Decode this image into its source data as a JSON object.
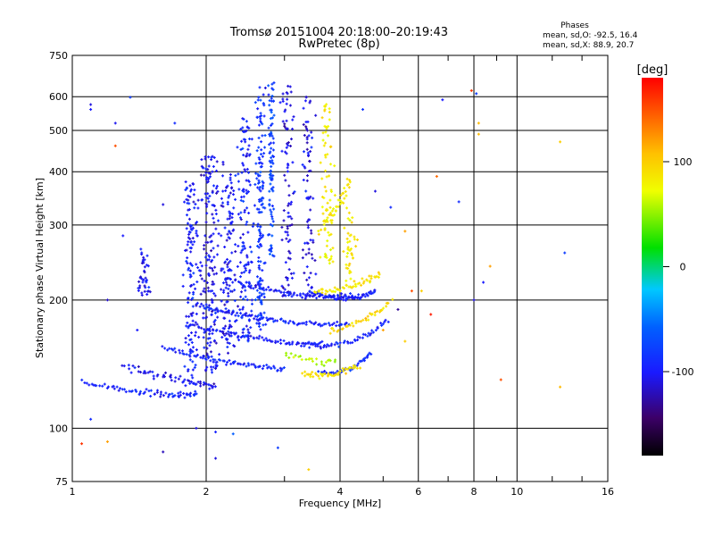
{
  "header": {
    "title": "Tromsø 20151004 20:18:00–20:19:43",
    "subtitle": "RwPretec (8p)"
  },
  "stats": {
    "heading": "Phases",
    "line_o": "mean, sd,O: -92.5, 16.4",
    "line_x": "mean, sd,X:  88.9, 20.7"
  },
  "colorbar": {
    "unit_label": "[deg]",
    "range": [
      -180,
      180
    ],
    "ticks": [
      {
        "value": 100,
        "label": "100"
      },
      {
        "value": 0,
        "label": "0"
      },
      {
        "value": -100,
        "label": "-100"
      }
    ]
  },
  "chart_data": {
    "type": "scatter",
    "xlabel": "Frequency [MHz]",
    "ylabel": "Stationary phase Virtual Height [km]",
    "x_scale": "log",
    "y_scale": "log",
    "xlim": [
      1,
      16
    ],
    "ylim": [
      75,
      750
    ],
    "grid": true,
    "x_ticks": [
      {
        "value": 1,
        "label": "1"
      },
      {
        "value": 2,
        "label": "2"
      },
      {
        "value": 4,
        "label": "4"
      },
      {
        "value": 6,
        "label": "6"
      },
      {
        "value": 8,
        "label": "8"
      },
      {
        "value": 10,
        "label": "10"
      },
      {
        "value": 16,
        "label": "16"
      }
    ],
    "y_ticks": [
      {
        "value": 75,
        "label": "75"
      },
      {
        "value": 100,
        "label": "100"
      },
      {
        "value": 200,
        "label": "200"
      },
      {
        "value": 300,
        "label": "300"
      },
      {
        "value": 400,
        "label": "400"
      },
      {
        "value": 500,
        "label": "500"
      },
      {
        "value": 600,
        "label": "600"
      },
      {
        "value": 750,
        "label": "750"
      }
    ],
    "color_variable": "phase [deg]",
    "traces": [
      {
        "x0": 1.05,
        "y0": 128,
        "x1": 1.6,
        "y1": 118,
        "x2": 1.9,
        "y2": 120,
        "phase": -95,
        "n": 70,
        "spread": 0.025
      },
      {
        "x0": 1.3,
        "y0": 140,
        "x1": 1.8,
        "y1": 128,
        "x2": 2.1,
        "y2": 125,
        "phase": -105,
        "n": 60,
        "spread": 0.03
      },
      {
        "x0": 1.6,
        "y0": 155,
        "x1": 2.3,
        "y1": 140,
        "x2": 3.0,
        "y2": 138,
        "phase": -95,
        "n": 70,
        "spread": 0.02
      },
      {
        "x0": 1.8,
        "y0": 175,
        "x1": 2.6,
        "y1": 160,
        "x2": 3.7,
        "y2": 155,
        "phase": -100,
        "n": 80,
        "spread": 0.02
      },
      {
        "x0": 1.9,
        "y0": 195,
        "x1": 2.8,
        "y1": 175,
        "x2": 4.2,
        "y2": 175,
        "phase": -95,
        "n": 90,
        "spread": 0.02
      },
      {
        "x0": 2.2,
        "y0": 225,
        "x1": 3.1,
        "y1": 200,
        "x2": 4.4,
        "y2": 205,
        "phase": -100,
        "n": 80,
        "spread": 0.02
      },
      {
        "x0": 3.4,
        "y0": 210,
        "x1": 4.2,
        "y1": 195,
        "x2": 4.8,
        "y2": 210,
        "phase": -98,
        "n": 60,
        "spread": 0.02
      },
      {
        "x0": 3.6,
        "y0": 135,
        "x1": 4.2,
        "y1": 132,
        "x2": 4.7,
        "y2": 150,
        "phase": -90,
        "n": 40,
        "spread": 0.02
      },
      {
        "x0": 3.3,
        "y0": 160,
        "x1": 4.3,
        "y1": 150,
        "x2": 5.1,
        "y2": 180,
        "phase": -95,
        "n": 50,
        "spread": 0.02
      },
      {
        "x0": 3.5,
        "y0": 210,
        "x1": 4.3,
        "y1": 210,
        "x2": 4.9,
        "y2": 230,
        "phase": 85,
        "n": 50,
        "spread": 0.025
      },
      {
        "x0": 3.3,
        "y0": 135,
        "x1": 3.8,
        "y1": 130,
        "x2": 4.4,
        "y2": 140,
        "phase": 90,
        "n": 45,
        "spread": 0.025
      },
      {
        "x0": 3.8,
        "y0": 170,
        "x1": 4.6,
        "y1": 175,
        "x2": 5.2,
        "y2": 200,
        "phase": 95,
        "n": 40,
        "spread": 0.025
      },
      {
        "x0": 3.6,
        "y0": 290,
        "x1": 4.0,
        "y1": 330,
        "x2": 4.2,
        "y2": 380,
        "phase": 88,
        "n": 40,
        "spread": 0.04
      },
      {
        "x0": 3.0,
        "y0": 150,
        "x1": 3.5,
        "y1": 140,
        "x2": 3.9,
        "y2": 145,
        "phase": 60,
        "n": 25,
        "spread": 0.03
      }
    ],
    "columns": [
      {
        "x": 1.85,
        "ymin": 130,
        "ymax": 380,
        "phase": -100,
        "n": 130,
        "spread": 0.06
      },
      {
        "x": 2.05,
        "ymin": 135,
        "ymax": 440,
        "phase": -105,
        "n": 180,
        "spread": 0.08
      },
      {
        "x": 2.25,
        "ymin": 150,
        "ymax": 400,
        "phase": -100,
        "n": 120,
        "spread": 0.06
      },
      {
        "x": 2.45,
        "ymin": 160,
        "ymax": 540,
        "phase": -95,
        "n": 140,
        "spread": 0.06
      },
      {
        "x": 2.65,
        "ymin": 170,
        "ymax": 640,
        "phase": -85,
        "n": 150,
        "spread": 0.04
      },
      {
        "x": 2.8,
        "ymin": 250,
        "ymax": 650,
        "phase": -75,
        "n": 90,
        "spread": 0.02
      },
      {
        "x": 3.05,
        "ymin": 200,
        "ymax": 640,
        "phase": -110,
        "n": 90,
        "spread": 0.05
      },
      {
        "x": 3.4,
        "ymin": 200,
        "ymax": 600,
        "phase": -110,
        "n": 80,
        "spread": 0.05
      },
      {
        "x": 1.45,
        "ymin": 205,
        "ymax": 265,
        "phase": -100,
        "n": 40,
        "spread": 0.05
      },
      {
        "x": 3.75,
        "ymin": 240,
        "ymax": 600,
        "phase": 80,
        "n": 70,
        "spread": 0.05
      },
      {
        "x": 4.2,
        "ymin": 220,
        "ymax": 330,
        "phase": 85,
        "n": 40,
        "spread": 0.05
      }
    ],
    "scatter": [
      {
        "x": 1.1,
        "y": 575,
        "phase": -110
      },
      {
        "x": 1.1,
        "y": 560,
        "phase": -100
      },
      {
        "x": 1.25,
        "y": 520,
        "phase": -105
      },
      {
        "x": 1.25,
        "y": 460,
        "phase": 150
      },
      {
        "x": 1.35,
        "y": 598,
        "phase": -80
      },
      {
        "x": 1.6,
        "y": 335,
        "phase": -110
      },
      {
        "x": 1.7,
        "y": 520,
        "phase": -90
      },
      {
        "x": 1.3,
        "y": 283,
        "phase": -100
      },
      {
        "x": 1.2,
        "y": 200,
        "phase": -115
      },
      {
        "x": 1.4,
        "y": 170,
        "phase": -100
      },
      {
        "x": 1.05,
        "y": 92,
        "phase": 160
      },
      {
        "x": 1.1,
        "y": 105,
        "phase": -90
      },
      {
        "x": 1.2,
        "y": 93,
        "phase": 120
      },
      {
        "x": 1.6,
        "y": 88,
        "phase": -120
      },
      {
        "x": 1.9,
        "y": 100,
        "phase": -110
      },
      {
        "x": 2.1,
        "y": 98,
        "phase": -95
      },
      {
        "x": 2.3,
        "y": 97,
        "phase": -60
      },
      {
        "x": 2.1,
        "y": 85,
        "phase": -110
      },
      {
        "x": 2.9,
        "y": 90,
        "phase": -80
      },
      {
        "x": 3.4,
        "y": 80,
        "phase": 100
      },
      {
        "x": 4.5,
        "y": 560,
        "phase": -85
      },
      {
        "x": 4.8,
        "y": 360,
        "phase": -110
      },
      {
        "x": 5.2,
        "y": 330,
        "phase": -90
      },
      {
        "x": 5.6,
        "y": 290,
        "phase": 120
      },
      {
        "x": 5.8,
        "y": 210,
        "phase": 150
      },
      {
        "x": 6.1,
        "y": 210,
        "phase": 100
      },
      {
        "x": 6.4,
        "y": 185,
        "phase": 170
      },
      {
        "x": 6.6,
        "y": 390,
        "phase": 140
      },
      {
        "x": 6.8,
        "y": 590,
        "phase": -100
      },
      {
        "x": 7.4,
        "y": 340,
        "phase": -90
      },
      {
        "x": 8.1,
        "y": 610,
        "phase": -80
      },
      {
        "x": 7.9,
        "y": 620,
        "phase": 160
      },
      {
        "x": 8.2,
        "y": 520,
        "phase": 110
      },
      {
        "x": 8.2,
        "y": 490,
        "phase": 110
      },
      {
        "x": 8.0,
        "y": 200,
        "phase": -110
      },
      {
        "x": 8.4,
        "y": 220,
        "phase": -100
      },
      {
        "x": 8.7,
        "y": 240,
        "phase": 120
      },
      {
        "x": 9.2,
        "y": 130,
        "phase": 150
      },
      {
        "x": 12.5,
        "y": 470,
        "phase": 100
      },
      {
        "x": 12.8,
        "y": 258,
        "phase": -80
      },
      {
        "x": 12.5,
        "y": 125,
        "phase": 110
      },
      {
        "x": 5.4,
        "y": 190,
        "phase": -130
      },
      {
        "x": 5.0,
        "y": 170,
        "phase": 120
      },
      {
        "x": 5.6,
        "y": 160,
        "phase": 100
      }
    ]
  }
}
